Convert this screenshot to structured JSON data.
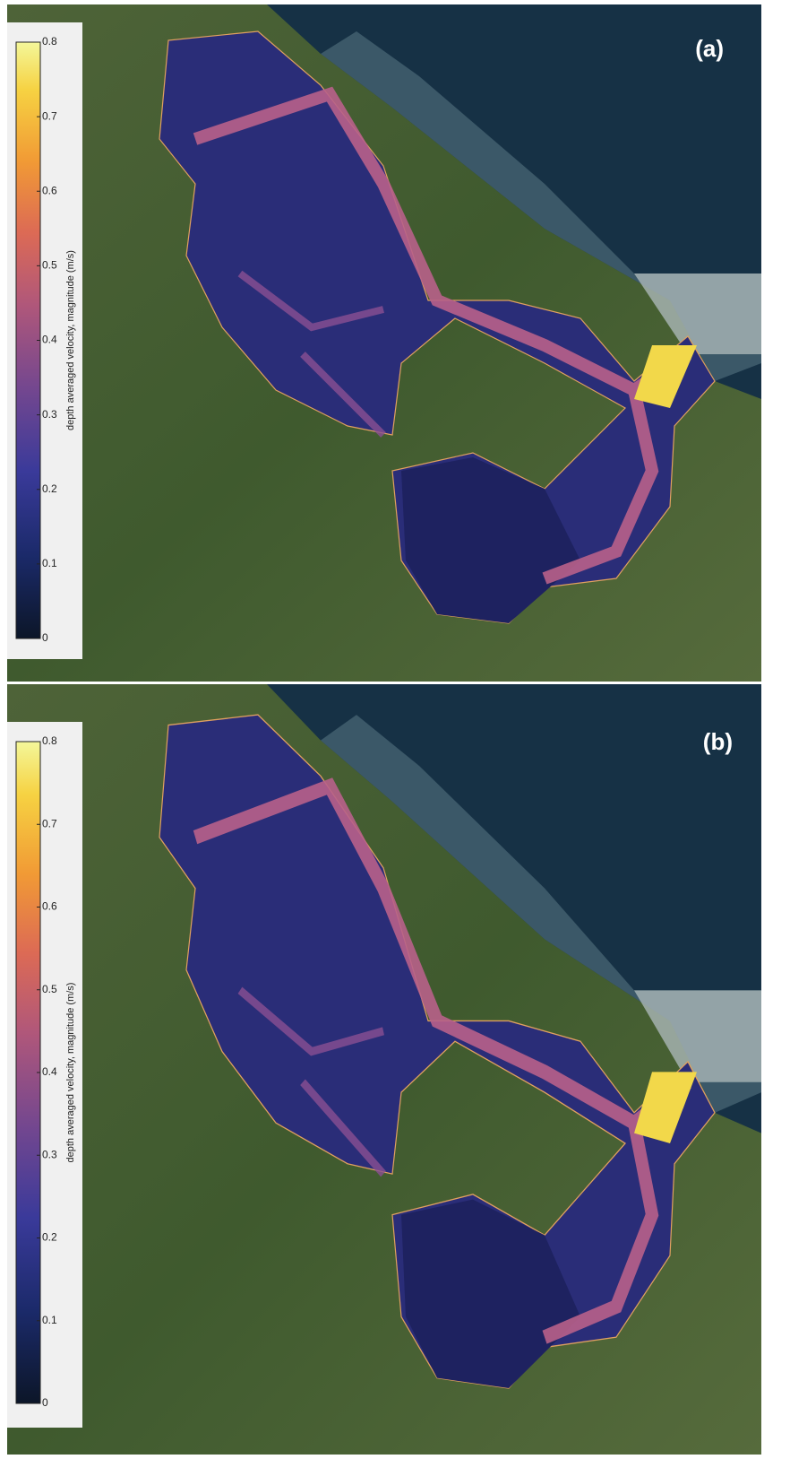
{
  "panels": [
    {
      "label": "(a)",
      "colorbar": {
        "label": "depth averaged velocity, magnitude (m/s)",
        "ticks": [
          0,
          0.1,
          0.2,
          0.3,
          0.4,
          0.5,
          0.6,
          0.7,
          0.8
        ]
      }
    },
    {
      "label": "(b)",
      "colorbar": {
        "label": "depth averaged velocity, magnitude (m/s)",
        "ticks": [
          0,
          0.1,
          0.2,
          0.3,
          0.4,
          0.5,
          0.6,
          0.7,
          0.8
        ]
      }
    }
  ]
}
